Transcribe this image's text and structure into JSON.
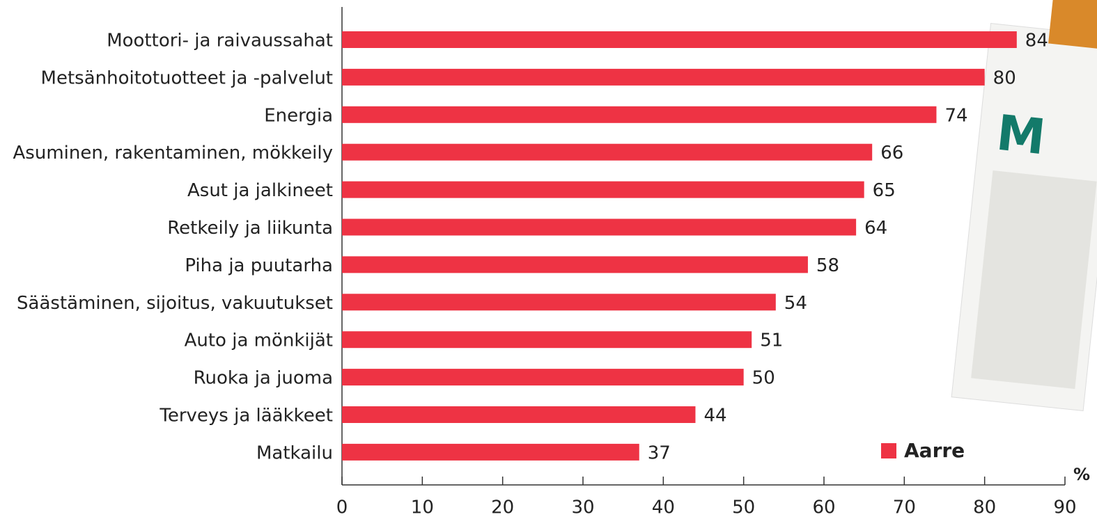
{
  "chart_data": {
    "type": "barh",
    "categories": [
      "Moottori- ja raivaussahat",
      "Metsänhoitotuotteet ja -palvelut",
      "Energia",
      "Asuminen, rakentaminen, mökkeily",
      "Asut ja jalkineet",
      "Retkeily ja liikunta",
      "Piha ja puutarha",
      "Säästäminen, sijoitus, vakuutukset",
      "Auto ja mönkijät",
      "Ruoka ja juoma",
      "Terveys ja lääkkeet",
      "Matkailu"
    ],
    "series": [
      {
        "name": "Aarre",
        "color": "#ee3344",
        "values": [
          84,
          80,
          74,
          66,
          65,
          64,
          58,
          54,
          51,
          50,
          44,
          37
        ]
      }
    ],
    "xlim": [
      0,
      90
    ],
    "xticks": [
      0,
      10,
      20,
      30,
      40,
      50,
      60,
      70,
      80,
      90
    ],
    "xlabel": "%",
    "legend": "lower right"
  }
}
